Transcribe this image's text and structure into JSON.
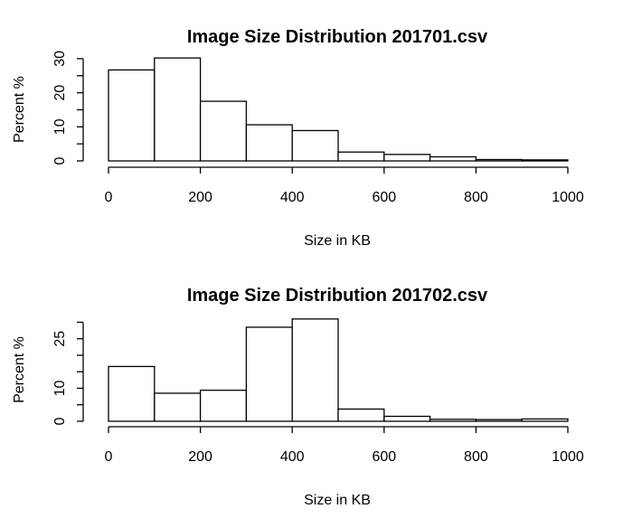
{
  "chart_data": [
    {
      "type": "bar",
      "title": "Image Size Distribution 201701.csv",
      "xlabel": "Size in KB",
      "ylabel": "Percent %",
      "xlim": [
        0,
        1000
      ],
      "ylim": [
        0,
        30
      ],
      "xticks": [
        "0",
        "200",
        "400",
        "600",
        "800",
        "1000"
      ],
      "yticks": [
        "0",
        "10",
        "20",
        "30"
      ],
      "bins": [
        [
          0,
          100
        ],
        [
          100,
          200
        ],
        [
          200,
          300
        ],
        [
          300,
          400
        ],
        [
          400,
          500
        ],
        [
          500,
          600
        ],
        [
          600,
          700
        ],
        [
          700,
          800
        ],
        [
          800,
          900
        ],
        [
          900,
          1000
        ]
      ],
      "values": [
        26.7,
        30.2,
        17.5,
        10.6,
        8.9,
        2.6,
        1.9,
        1.2,
        0.4,
        0.3
      ],
      "grid": false
    },
    {
      "type": "bar",
      "title": "Image Size Distribution 201702.csv",
      "xlabel": "Size in KB",
      "ylabel": "Percent %",
      "xlim": [
        0,
        1000
      ],
      "ylim": [
        0,
        30
      ],
      "xticks": [
        "0",
        "200",
        "400",
        "600",
        "800",
        "1000"
      ],
      "yticks": [
        "0",
        "10",
        "25"
      ],
      "bins": [
        [
          0,
          100
        ],
        [
          100,
          200
        ],
        [
          200,
          300
        ],
        [
          300,
          400
        ],
        [
          400,
          500
        ],
        [
          500,
          600
        ],
        [
          600,
          700
        ],
        [
          700,
          800
        ],
        [
          800,
          900
        ],
        [
          900,
          1000
        ]
      ],
      "values": [
        16.6,
        8.5,
        9.4,
        28.5,
        31.0,
        3.7,
        1.5,
        0.6,
        0.5,
        0.7
      ],
      "grid": false
    }
  ]
}
